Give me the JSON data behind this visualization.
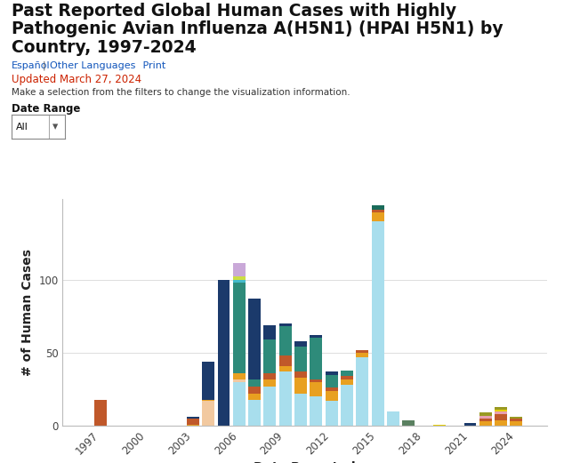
{
  "title_line1": "Past Reported Global Human Cases with Highly",
  "title_line2": "Pathogenic Avian Influenza A(H5N1) (HPAI H5N1) by",
  "title_line3": "Country, 1997-2024",
  "link1": "Español",
  "sep": " | ",
  "link2": "Other Languages",
  "link3": "   Print",
  "update_text": "Updated March 27, 2024",
  "filter_text": "Make a selection from the filters to change the visualization information.",
  "date_range_label": "Date Range",
  "date_range_value": "All",
  "xlabel": "Date Reported",
  "ylabel": "# of Human Cases",
  "years": [
    1997,
    2003,
    2004,
    2005,
    2006,
    2007,
    2008,
    2009,
    2010,
    2011,
    2012,
    2013,
    2014,
    2015,
    2016,
    2017,
    2019,
    2021,
    2022,
    2023,
    2024
  ],
  "colors": {
    "light_blue": "#A8DEED",
    "dark_navy": "#1B3A6B",
    "teal_green": "#2E8B7A",
    "orange": "#E8A020",
    "brown_red": "#C0582A",
    "peach": "#F2C9A0",
    "lavender": "#C9A8D8",
    "yellow_green": "#CCDD44",
    "dark_teal": "#1A6B5A",
    "pink": "#E8A0B0",
    "yellow": "#E8D000",
    "olive": "#999922",
    "gray_green": "#5A8060",
    "cyan_small": "#44BBCC"
  },
  "stacked_data": {
    "1997": {
      "brown_red": 18
    },
    "2003": {
      "brown_red": 4,
      "orange": 1,
      "dark_navy": 1
    },
    "2004": {
      "peach": 17,
      "dark_navy": 26,
      "orange": 1
    },
    "2005": {
      "dark_navy": 100
    },
    "2006": {
      "light_blue": 30,
      "orange": 4,
      "peach": 2,
      "teal_green": 62,
      "cyan_small": 2,
      "yellow_green": 2,
      "lavender": 9
    },
    "2007": {
      "light_blue": 18,
      "orange": 4,
      "brown_red": 5,
      "dark_navy": 55,
      "teal_green": 5
    },
    "2008": {
      "light_blue": 27,
      "orange": 5,
      "brown_red": 4,
      "dark_navy": 10,
      "teal_green": 23
    },
    "2009": {
      "light_blue": 37,
      "orange": 4,
      "brown_red": 7,
      "teal_green": 20,
      "dark_navy": 2
    },
    "2010": {
      "light_blue": 22,
      "orange": 11,
      "brown_red": 4,
      "teal_green": 17,
      "dark_navy": 4
    },
    "2011": {
      "light_blue": 20,
      "orange": 10,
      "brown_red": 2,
      "teal_green": 28,
      "dark_navy": 2
    },
    "2012": {
      "light_blue": 17,
      "orange": 7,
      "brown_red": 2,
      "teal_green": 9,
      "dark_navy": 2
    },
    "2013": {
      "light_blue": 28,
      "orange": 4,
      "brown_red": 2,
      "teal_green": 4
    },
    "2014": {
      "light_blue": 47,
      "orange": 3,
      "brown_red": 2
    },
    "2015": {
      "light_blue": 140,
      "dark_teal": 3,
      "orange": 6,
      "brown_red": 2
    },
    "2016": {
      "light_blue": 10
    },
    "2017": {
      "gray_green": 4
    },
    "2019": {
      "yellow": 1
    },
    "2021": {
      "dark_navy": 2
    },
    "2022": {
      "pink": 2,
      "orange": 3,
      "brown_red": 2,
      "olive": 2
    },
    "2023": {
      "pink": 2,
      "orange": 4,
      "brown_red": 4,
      "olive": 2,
      "yellow": 1
    },
    "2024": {
      "orange": 3,
      "brown_red": 2,
      "olive": 1
    }
  },
  "color_order": [
    "light_blue",
    "peach",
    "orange",
    "brown_red",
    "teal_green",
    "cyan_small",
    "yellow_green",
    "lavender",
    "dark_navy",
    "dark_teal",
    "pink",
    "yellow",
    "olive",
    "gray_green"
  ],
  "xlim": [
    1994.5,
    2026
  ],
  "ylim": [
    0,
    155
  ],
  "yticks": [
    0,
    50,
    100
  ],
  "xticks": [
    1997,
    2000,
    2003,
    2006,
    2009,
    2012,
    2015,
    2018,
    2021,
    2024
  ],
  "bar_width": 0.8,
  "background_color": "#FFFFFF",
  "grid_color": "#DDDDDD",
  "title_fontsize": 13.5,
  "label_fontsize": 10,
  "tick_fontsize": 8.5
}
